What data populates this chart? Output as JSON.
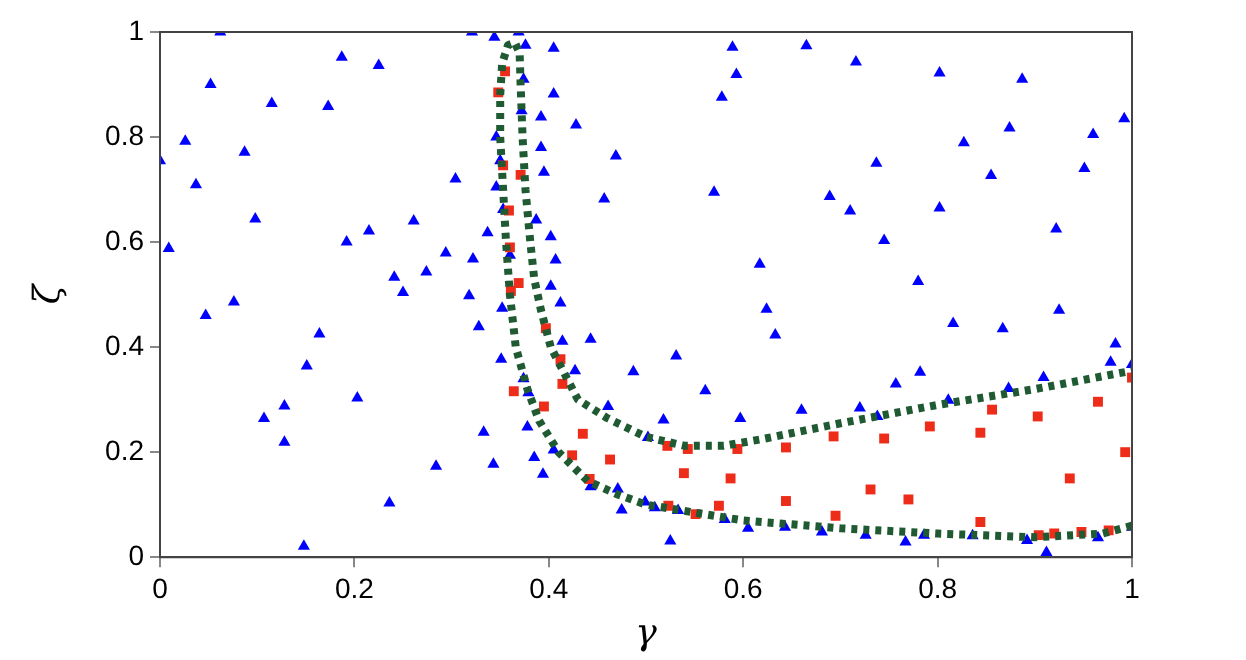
{
  "chart_data": {
    "type": "scatter",
    "xlabel": "γ",
    "ylabel": "ζ",
    "xlim": [
      0,
      1
    ],
    "ylim": [
      0,
      1
    ],
    "xticks": [
      0,
      0.2,
      0.4,
      0.6,
      0.8,
      1
    ],
    "yticks": [
      0,
      0.2,
      0.4,
      0.6,
      0.8,
      1
    ],
    "grid": false,
    "legend": false,
    "series": [
      {
        "type": "scatter",
        "color": "#0000ff",
        "marker": "triangle",
        "x": [
          0.062,
          0,
          0.009,
          0.026,
          0.052,
          0.037,
          0.047,
          0.076,
          0.087,
          0.098,
          0.115,
          0.107,
          0.128,
          0.128,
          0.148,
          0.151,
          0.164,
          0.173,
          0.187,
          0.192,
          0.203,
          0.215,
          0.225,
          0.236,
          0.241,
          0.25,
          0.261,
          0.274,
          0.284,
          0.294,
          0.304,
          0.318,
          0.322,
          0.328,
          0.333,
          0.321,
          0.343,
          0.344,
          0.337,
          0.351,
          0.352,
          0.369,
          0.376,
          0.405,
          0.405,
          0.428,
          0.469,
          0.457,
          0.443,
          0.487,
          0.475,
          0.394,
          0.385,
          0.378,
          0.374,
          0.372,
          0.392,
          0.392,
          0.395,
          0.387,
          0.402,
          0.407,
          0.402,
          0.412,
          0.414,
          0.346,
          0.35,
          0.346,
          0.353,
          0.36,
          0.374,
          0.379,
          0.405,
          0.443,
          0.471,
          0.499,
          0.427,
          0.461,
          0.589,
          0.665,
          0.716,
          0.802,
          0.887,
          0.593,
          0.578,
          0.992,
          0.874,
          0.96,
          0.827,
          0.737,
          0.855,
          0.951,
          0.57,
          0.689,
          0.71,
          0.802,
          0.922,
          0.745,
          0.617,
          0.78,
          0.624,
          0.816,
          0.867,
          0.925,
          0.633,
          0.531,
          0.561,
          0.518,
          0.597,
          0.66,
          0.757,
          0.782,
          0.72,
          0.983,
          0.978,
          1,
          0.909,
          0.525,
          0.767,
          0.912,
          1,
          0.502,
          0.738,
          0.811,
          0.873,
          0.509,
          0.533,
          0.581,
          0.605,
          0.643,
          0.681,
          0.726,
          0.786,
          0.836,
          0.892,
          0.965
        ],
        "values": [
          1,
          0.755,
          0.588,
          0.792,
          0.9,
          0.709,
          0.46,
          0.486,
          0.771,
          0.644,
          0.864,
          0.264,
          0.288,
          0.219,
          0.021,
          0.364,
          0.425,
          0.858,
          0.952,
          0.6,
          0.303,
          0.621,
          0.936,
          0.103,
          0.533,
          0.504,
          0.64,
          0.543,
          0.173,
          0.579,
          0.72,
          0.498,
          0.568,
          0.439,
          0.238,
          1,
          0.177,
          0.99,
          0.618,
          0.377,
          0.474,
          1,
          0.975,
          0.969,
          0.882,
          0.823,
          0.764,
          0.682,
          0.415,
          0.353,
          0.09,
          0.158,
          0.19,
          0.248,
          0.91,
          0.85,
          0.838,
          0.78,
          0.733,
          0.642,
          0.61,
          0.566,
          0.516,
          0.484,
          0.411,
          0.8,
          0.755,
          0.705,
          0.662,
          0.575,
          0.34,
          0.313,
          0.204,
          0.134,
          0.13,
          0.105,
          0.355,
          0.287,
          0.971,
          0.974,
          0.943,
          0.922,
          0.91,
          0.919,
          0.876,
          0.835,
          0.817,
          0.805,
          0.789,
          0.75,
          0.727,
          0.74,
          0.695,
          0.687,
          0.659,
          0.665,
          0.625,
          0.603,
          0.558,
          0.525,
          0.472,
          0.445,
          0.435,
          0.47,
          0.423,
          0.383,
          0.317,
          0.261,
          0.264,
          0.28,
          0.33,
          0.352,
          0.284,
          0.406,
          0.371,
          0.367,
          0.342,
          0.031,
          0.029,
          0.009,
          0.057,
          0.228,
          0.268,
          0.299,
          0.321,
          0.094,
          0.089,
          0.072,
          0.055,
          0.057,
          0.048,
          0.042,
          0.042,
          0.041,
          0.032,
          0.037
        ]
      },
      {
        "type": "scatter",
        "color": "#ee2c1a",
        "marker": "square",
        "x": [
          0.355,
          0.348,
          0.353,
          0.359,
          0.36,
          0.369,
          0.361,
          0.397,
          0.412,
          0.414,
          0.395,
          0.435,
          0.424,
          0.463,
          0.442,
          0.371,
          0.364,
          0.522,
          0.543,
          0.539,
          0.587,
          0.594,
          0.644,
          0.644,
          0.575,
          0.693,
          0.745,
          0.792,
          0.844,
          0.856,
          0.903,
          0.965,
          1,
          0.993,
          0.936,
          0.731,
          0.77,
          0.695,
          0.844,
          0.523,
          0.551,
          0.948,
          0.976,
          0.904,
          0.92
        ],
        "values": [
          0.925,
          0.885,
          0.746,
          0.66,
          0.59,
          0.522,
          0.507,
          0.436,
          0.377,
          0.33,
          0.287,
          0.235,
          0.194,
          0.186,
          0.149,
          0.728,
          0.316,
          0.212,
          0.206,
          0.16,
          0.15,
          0.206,
          0.209,
          0.107,
          0.098,
          0.23,
          0.226,
          0.249,
          0.237,
          0.281,
          0.268,
          0.296,
          0.342,
          0.2,
          0.15,
          0.129,
          0.11,
          0.079,
          0.067,
          0.098,
          0.082,
          0.048,
          0.051,
          0.042,
          0.045
        ]
      },
      {
        "type": "line",
        "color": "#1f5a32",
        "marker": "none",
        "line_style": "dotted",
        "x": [
          1,
          0.97,
          0.9,
          0.8,
          0.7,
          0.6,
          0.55,
          0.5,
          0.47,
          0.44,
          0.41,
          0.39,
          0.378,
          0.366,
          0.36,
          0.356,
          0.353,
          0.35,
          0.35,
          0.352,
          0.358,
          0.365,
          0.37,
          0.371,
          0.373,
          0.376,
          0.381,
          0.385,
          0.392,
          0.402,
          0.43,
          0.46,
          0.5,
          0.54,
          0.58,
          0.62,
          0.7,
          0.8,
          0.9,
          1
        ],
        "values": [
          0.06,
          0.045,
          0.038,
          0.045,
          0.055,
          0.07,
          0.085,
          0.1,
          0.12,
          0.145,
          0.2,
          0.26,
          0.32,
          0.4,
          0.5,
          0.6,
          0.7,
          0.8,
          0.88,
          0.94,
          0.975,
          0.98,
          0.96,
          0.9,
          0.8,
          0.7,
          0.6,
          0.53,
          0.47,
          0.4,
          0.3,
          0.265,
          0.229,
          0.212,
          0.212,
          0.225,
          0.255,
          0.29,
          0.32,
          0.355
        ]
      }
    ]
  }
}
